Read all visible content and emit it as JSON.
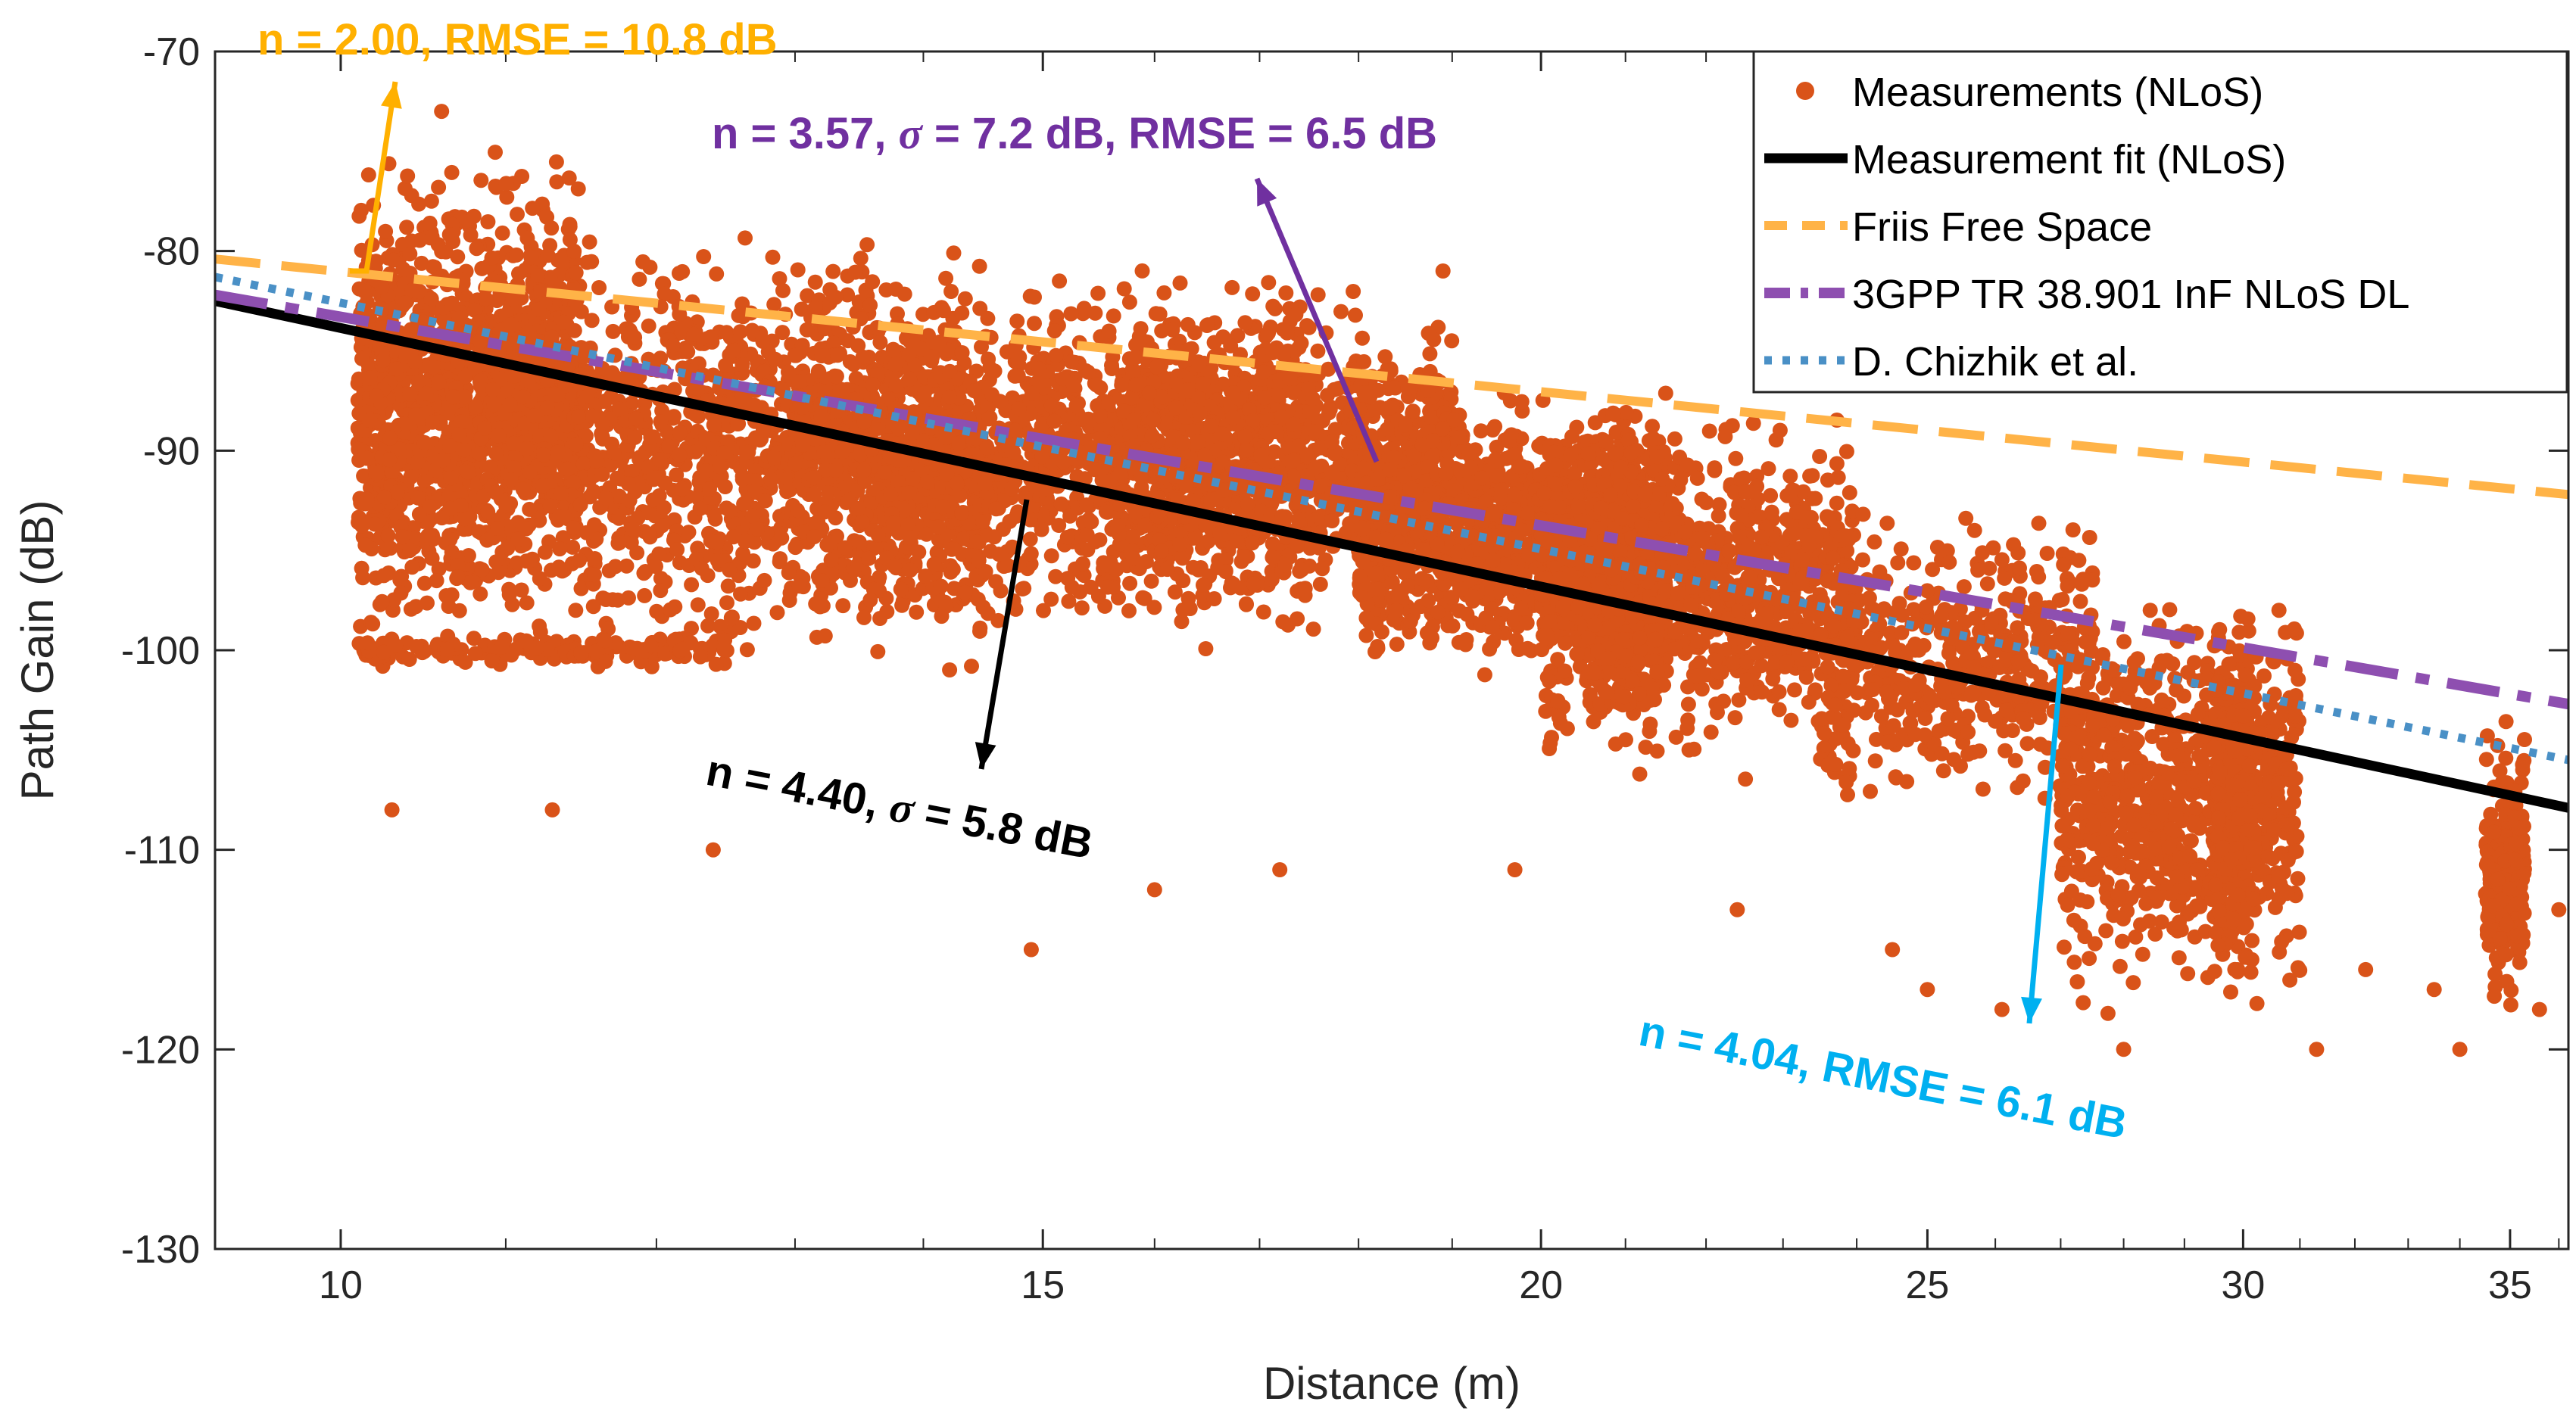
{
  "chart_data": {
    "type": "scatter",
    "xscale": "log",
    "xlabel": "Distance (m)",
    "ylabel": "Path Gain (dB)",
    "xlim": [
      9.3,
      36.2
    ],
    "ylim": [
      -130,
      -70
    ],
    "xticks": [
      10,
      15,
      20,
      25,
      30,
      35
    ],
    "yticks": [
      -130,
      -120,
      -110,
      -100,
      -90,
      -80,
      -70
    ],
    "minor_xticks": [
      11,
      12,
      13,
      14,
      16,
      17,
      18,
      19,
      21,
      22,
      23,
      24,
      26,
      27,
      28,
      29,
      31,
      32,
      33,
      34,
      36
    ],
    "scatter_seed": 7,
    "scatter_clusters": [
      {
        "x": [
          10.1,
          11.5
        ],
        "y": [
          -98,
          -74
        ],
        "n": 900
      },
      {
        "x": [
          10.1,
          14.5
        ],
        "y": [
          -102,
          -78
        ],
        "n": 1800
      },
      {
        "x": [
          13.0,
          17.5
        ],
        "y": [
          -101,
          -79
        ],
        "n": 1300
      },
      {
        "x": [
          15.5,
          19.0
        ],
        "y": [
          -100,
          -81
        ],
        "n": 900
      },
      {
        "x": [
          18.0,
          20.5
        ],
        "y": [
          -102,
          -86
        ],
        "n": 900
      },
      {
        "x": [
          20.5,
          21.5
        ],
        "y": [
          -105,
          -86
        ],
        "n": 600
      },
      {
        "x": [
          20.0,
          24.0
        ],
        "y": [
          -107,
          -87
        ],
        "n": 1000
      },
      {
        "x": [
          23.5,
          27.5
        ],
        "y": [
          -109,
          -92
        ],
        "n": 500
      },
      {
        "x": [
          27.0,
          31.0
        ],
        "y": [
          -119,
          -96
        ],
        "n": 800
      },
      {
        "x": [
          29.5,
          30.2
        ],
        "y": [
          -119,
          -96
        ],
        "n": 300
      },
      {
        "x": [
          34.5,
          35.3
        ],
        "y": [
          -119,
          -103
        ],
        "n": 250
      },
      {
        "x": [
          10.1,
          12.5
        ],
        "y": [
          -101,
          -99
        ],
        "n": 150
      }
    ],
    "scatter_outliers": [
      [
        10.3,
        -108
      ],
      [
        11.3,
        -108
      ],
      [
        12.4,
        -110
      ],
      [
        14.9,
        -115
      ],
      [
        16.0,
        -112
      ],
      [
        17.2,
        -111
      ],
      [
        19.7,
        -111
      ],
      [
        22.4,
        -113
      ],
      [
        24.5,
        -115
      ],
      [
        25.0,
        -117
      ],
      [
        26.1,
        -118
      ],
      [
        28.0,
        -120
      ],
      [
        31.3,
        -120
      ],
      [
        33.5,
        -117
      ],
      [
        35.6,
        -118
      ],
      [
        10.6,
        -73
      ],
      [
        18.9,
        -81
      ],
      [
        36.0,
        -113
      ],
      [
        32.2,
        -116
      ],
      [
        34.0,
        -120
      ]
    ],
    "series": [
      {
        "name": "Measurements (NLoS)",
        "type": "scatter",
        "color": "#D95319"
      },
      {
        "name": "Measurement fit (NLoS)",
        "type": "line",
        "style": "solid",
        "color": "#000000",
        "x": [
          9.3,
          36.2
        ],
        "y": [
          -82.5,
          -107.9
        ]
      },
      {
        "name": "Friis Free Space",
        "type": "line",
        "style": "dashed",
        "color": "#FFB347",
        "x": [
          9.3,
          36.2
        ],
        "y": [
          -80.4,
          -92.2
        ]
      },
      {
        "name": "3GPP TR 38.901 InF NLoS DL",
        "type": "line",
        "style": "dashdot",
        "color": "#8E4FB0",
        "x": [
          9.3,
          36.2
        ],
        "y": [
          -82.2,
          -102.7
        ]
      },
      {
        "name": "D. Chizhik et al.",
        "type": "line",
        "style": "dotted",
        "color": "#4A90C6",
        "x": [
          9.3,
          36.2
        ],
        "y": [
          -81.3,
          -105.5
        ]
      }
    ],
    "annotations": [
      {
        "text": "n = 2.00, RMSE = 10.8 dB",
        "color": "#FFB000"
      },
      {
        "pre": "n = 3.57, ",
        "sigma": "σ",
        "post": " = 7.2 dB, RMSE = 6.5 dB",
        "color": "#7030A0"
      },
      {
        "pre": "n = 4.40, ",
        "sigma": "σ",
        "post": " = 5.8 dB",
        "color": "#000000"
      },
      {
        "text": "n = 4.04,  RMSE = 6.1 dB",
        "color": "#00B0F0"
      }
    ]
  }
}
